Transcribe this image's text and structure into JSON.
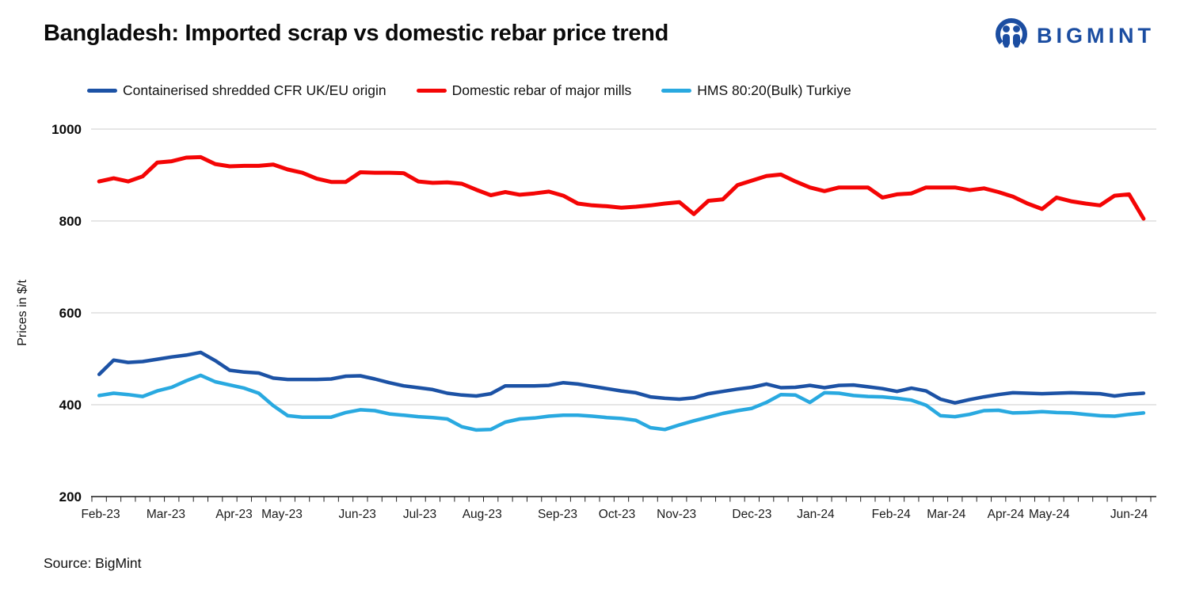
{
  "header": {
    "title": "Bangladesh: Imported scrap vs domestic rebar price trend",
    "brand": {
      "name": "BIGMINT",
      "color": "#1B4DA1"
    }
  },
  "source": {
    "label": "Source: BigMint"
  },
  "chart_data": {
    "type": "line",
    "title": "Bangladesh: Imported scrap vs domestic rebar price trend",
    "xlabel": "",
    "ylabel": "Prices in $/t",
    "ylim": [
      200,
      1000
    ],
    "yticks": [
      1000,
      800,
      600,
      400,
      200
    ],
    "grid": "horizontal",
    "grid_color": "#D6D6D6",
    "axis_color": "#1a1a1a",
    "legend_position": "top",
    "x_unit": "weekly points, Feb-2023 to Jun-2024",
    "month_labels": [
      {
        "label": "Feb-23",
        "i": 0.1
      },
      {
        "label": "Mar-23",
        "i": 4.6
      },
      {
        "label": "Apr-23",
        "i": 9.3
      },
      {
        "label": "May-23",
        "i": 12.6
      },
      {
        "label": "Jun-23",
        "i": 17.8
      },
      {
        "label": "Jul-23",
        "i": 22.1
      },
      {
        "label": "Aug-23",
        "i": 26.4
      },
      {
        "label": "Sep-23",
        "i": 31.6
      },
      {
        "label": "Oct-23",
        "i": 35.7
      },
      {
        "label": "Nov-23",
        "i": 39.8
      },
      {
        "label": "Dec-23",
        "i": 45.0
      },
      {
        "label": "Jan-24",
        "i": 49.4
      },
      {
        "label": "Feb-24",
        "i": 54.6
      },
      {
        "label": "Mar-24",
        "i": 58.4
      },
      {
        "label": "Apr-24",
        "i": 62.5
      },
      {
        "label": "May-24",
        "i": 65.5
      },
      {
        "label": "Jun-24",
        "i": 71.0
      }
    ],
    "series": [
      {
        "name": "Containerised shredded CFR UK/EU origin",
        "color": "#1C52A5",
        "width": 4.5,
        "values": [
          466,
          497,
          492,
          494,
          499,
          504,
          508,
          514,
          496,
          475,
          471,
          469,
          458,
          455,
          455,
          455,
          456,
          462,
          463,
          456,
          448,
          441,
          437,
          433,
          425,
          421,
          419,
          424,
          441,
          441,
          441,
          442,
          448,
          445,
          440,
          435,
          430,
          426,
          417,
          414,
          412,
          415,
          424,
          429,
          434,
          438,
          445,
          437,
          438,
          442,
          437,
          442,
          443,
          439,
          435,
          429,
          436,
          430,
          412,
          404,
          411,
          417,
          422,
          426,
          425,
          424,
          425,
          426,
          425,
          424,
          419,
          423,
          425
        ]
      },
      {
        "name": "Domestic rebar of major mills",
        "color": "#F40505",
        "width": 5,
        "values": [
          886,
          893,
          886,
          897,
          927,
          930,
          938,
          939,
          924,
          919,
          920,
          920,
          923,
          912,
          905,
          892,
          885,
          885,
          906,
          905,
          905,
          904,
          886,
          883,
          884,
          881,
          868,
          856,
          863,
          857,
          860,
          864,
          855,
          838,
          834,
          832,
          829,
          831,
          834,
          838,
          841,
          815,
          844,
          847,
          878,
          888,
          898,
          901,
          886,
          873,
          865,
          873,
          873,
          873,
          851,
          858,
          860,
          873,
          873,
          873,
          867,
          871,
          863,
          853,
          838,
          826,
          851,
          843,
          838,
          834,
          855,
          858,
          805
        ]
      },
      {
        "name": "HMS 80:20(Bulk) Turkiye",
        "color": "#29A9E0",
        "width": 4.5,
        "values": [
          420,
          425,
          422,
          418,
          430,
          438,
          452,
          464,
          450,
          443,
          436,
          425,
          398,
          376,
          373,
          373,
          373,
          383,
          389,
          387,
          380,
          377,
          374,
          372,
          369,
          352,
          345,
          346,
          362,
          369,
          371,
          375,
          377,
          377,
          375,
          372,
          370,
          366,
          350,
          346,
          356,
          365,
          373,
          381,
          387,
          392,
          405,
          422,
          421,
          405,
          426,
          425,
          420,
          418,
          417,
          414,
          410,
          399,
          376,
          374,
          379,
          387,
          388,
          382,
          383,
          385,
          383,
          382,
          379,
          376,
          375,
          379,
          382
        ]
      }
    ]
  }
}
